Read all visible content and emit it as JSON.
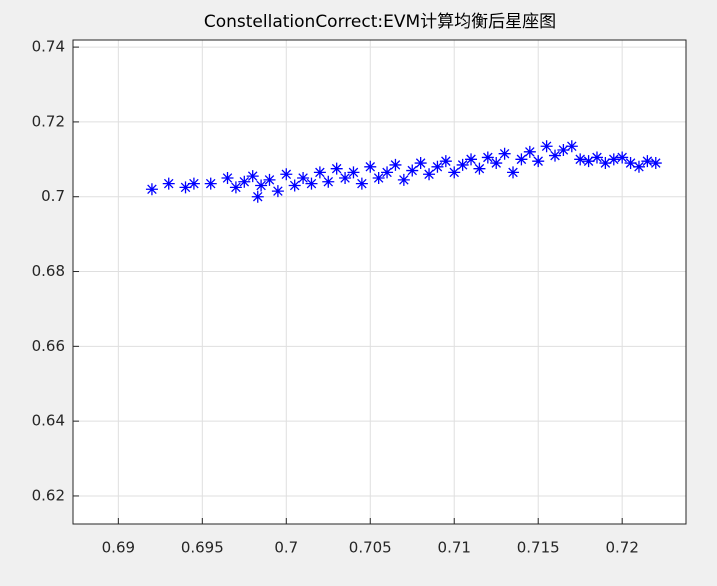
{
  "chart_data": {
    "type": "scatter",
    "title": "ConstellationCorrect:EVM计算均衡后星座图",
    "x": [
      0.692,
      0.693,
      0.694,
      0.6945,
      0.6955,
      0.6965,
      0.697,
      0.6975,
      0.698,
      0.6983,
      0.6985,
      0.699,
      0.6995,
      0.7,
      0.7005,
      0.701,
      0.7015,
      0.702,
      0.7025,
      0.703,
      0.7035,
      0.704,
      0.7045,
      0.705,
      0.7055,
      0.706,
      0.7065,
      0.707,
      0.7075,
      0.708,
      0.7085,
      0.709,
      0.7095,
      0.71,
      0.7105,
      0.711,
      0.7115,
      0.712,
      0.7125,
      0.713,
      0.7135,
      0.714,
      0.7145,
      0.715,
      0.7155,
      0.716,
      0.7165,
      0.717,
      0.7175,
      0.718,
      0.7185,
      0.719,
      0.7195,
      0.72,
      0.7205,
      0.721,
      0.7215,
      0.722
    ],
    "series": [
      {
        "color": "#0000ff",
        "values": [
          0.702,
          0.7035,
          0.7025,
          0.7035,
          0.7035,
          0.705,
          0.7025,
          0.704,
          0.7055,
          0.7,
          0.703,
          0.7045,
          0.7015,
          0.706,
          0.703,
          0.705,
          0.7035,
          0.7065,
          0.704,
          0.7075,
          0.705,
          0.7065,
          0.7035,
          0.708,
          0.705,
          0.7065,
          0.7085,
          0.7045,
          0.707,
          0.709,
          0.706,
          0.708,
          0.7095,
          0.7065,
          0.7085,
          0.71,
          0.7075,
          0.7105,
          0.709,
          0.7115,
          0.7065,
          0.71,
          0.712,
          0.7095,
          0.7135,
          0.711,
          0.7125,
          0.7135,
          0.71,
          0.7095,
          0.7105,
          0.709,
          0.71,
          0.7105,
          0.709,
          0.708,
          0.7095,
          0.709
        ]
      }
    ],
    "xlim": [
      0.6873,
      0.7238
    ],
    "xticks": [
      0.69,
      0.695,
      0.7,
      0.705,
      0.71,
      0.715,
      0.72
    ],
    "ylim": [
      0.6125,
      0.7419
    ],
    "yticks": [
      0.62,
      0.64,
      0.66,
      0.68,
      0.7,
      0.72,
      0.74
    ],
    "grid": true
  }
}
